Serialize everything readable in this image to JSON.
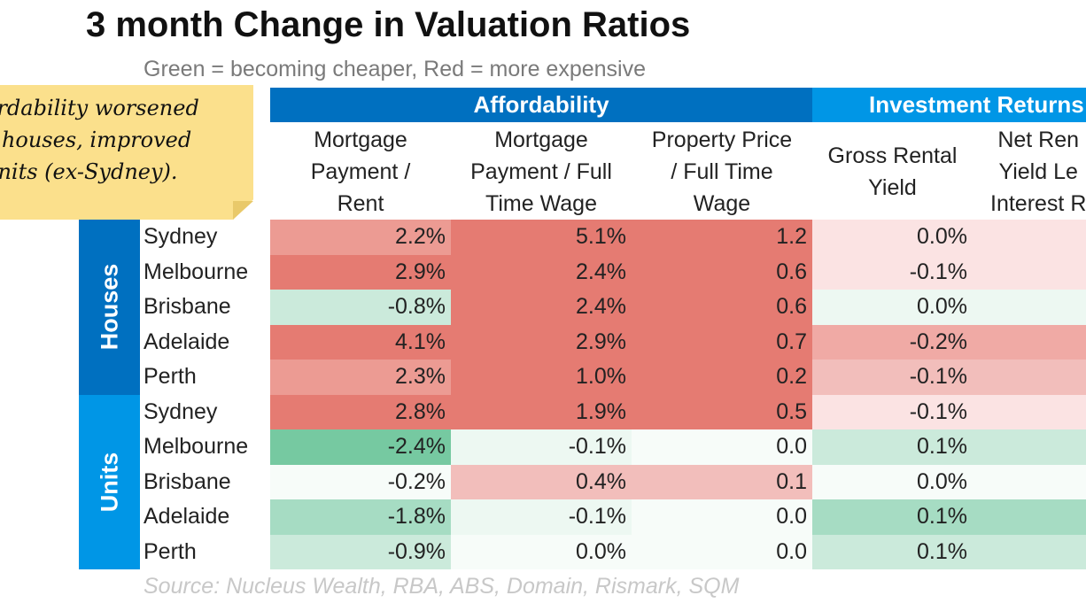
{
  "title": "3 month Change in Valuation Ratios",
  "subtitle": "Green = becoming cheaper, Red = more expensive",
  "source": "Source: Nucleus Wealth, RBA, ABS, Domain, Rismark, SQM",
  "note": {
    "lines": [
      "ordability worsened",
      "s houses, improved",
      "units (ex-Sydney)."
    ]
  },
  "colors": {
    "group_affordability": "#0070c0",
    "group_investment": "#0096e6",
    "band_houses": "#0070c0",
    "band_units": "#0096e6",
    "red_base": "#e06a62",
    "green_base": "#57bf8d",
    "note_bg": "#fbe08c"
  },
  "chart_data": {
    "type": "table",
    "title": "3 month Change in Valuation Ratios",
    "subtitle": "Green = becoming cheaper, Red = more expensive",
    "groups": [
      {
        "label": "Affordability",
        "columns": [
          0,
          1,
          2
        ]
      },
      {
        "label": "Investment Returns",
        "columns": [
          3,
          4
        ]
      }
    ],
    "columns": [
      {
        "label": "Mortgage\nPayment /\nRent",
        "format": "pct"
      },
      {
        "label": "Mortgage\nPayment / Full\nTime Wage",
        "format": "pct"
      },
      {
        "label": "Property Price\n/ Full Time\nWage",
        "format": "num"
      },
      {
        "label": "Gross Rental\nYield",
        "format": "pct"
      },
      {
        "label": "Net Ren\nYield Le\nInterest R",
        "format": "pct"
      }
    ],
    "segments": [
      {
        "label": "Houses",
        "rows": [
          {
            "name": "Sydney",
            "display": [
              "2.2%",
              "5.1%",
              "1.2",
              "0.0%",
              ""
            ],
            "values": [
              2.2,
              5.1,
              1.2,
              0.0,
              null
            ]
          },
          {
            "name": "Melbourne",
            "display": [
              "2.9%",
              "2.4%",
              "0.6",
              "-0.1%",
              ""
            ],
            "values": [
              2.9,
              2.4,
              0.6,
              -0.1,
              null
            ]
          },
          {
            "name": "Brisbane",
            "display": [
              "-0.8%",
              "2.4%",
              "0.6",
              "0.0%",
              ""
            ],
            "values": [
              -0.8,
              2.4,
              0.6,
              0.0,
              null
            ]
          },
          {
            "name": "Adelaide",
            "display": [
              "4.1%",
              "2.9%",
              "0.7",
              "-0.2%",
              ""
            ],
            "values": [
              4.1,
              2.9,
              0.7,
              -0.2,
              null
            ]
          },
          {
            "name": "Perth",
            "display": [
              "2.3%",
              "1.0%",
              "0.2",
              "-0.1%",
              ""
            ],
            "values": [
              2.3,
              1.0,
              0.2,
              -0.1,
              null
            ]
          }
        ]
      },
      {
        "label": "Units",
        "rows": [
          {
            "name": "Sydney",
            "display": [
              "2.8%",
              "1.9%",
              "0.5",
              "-0.1%",
              ""
            ],
            "values": [
              2.8,
              1.9,
              0.5,
              -0.1,
              null
            ]
          },
          {
            "name": "Melbourne",
            "display": [
              "-2.4%",
              "-0.1%",
              "0.0",
              "0.1%",
              ""
            ],
            "values": [
              -2.4,
              -0.1,
              0.0,
              0.1,
              null
            ]
          },
          {
            "name": "Brisbane",
            "display": [
              "-0.2%",
              "0.4%",
              "0.1",
              "0.0%",
              ""
            ],
            "values": [
              -0.2,
              0.4,
              0.1,
              0.0,
              null
            ]
          },
          {
            "name": "Adelaide",
            "display": [
              "-1.8%",
              "-0.1%",
              "0.0",
              "0.1%",
              ""
            ],
            "values": [
              -1.8,
              -0.1,
              0.0,
              0.1,
              null
            ]
          },
          {
            "name": "Perth",
            "display": [
              "-0.9%",
              "0.0%",
              "0.0",
              "0.1%",
              ""
            ],
            "values": [
              -0.9,
              0.0,
              0.0,
              0.1,
              null
            ]
          }
        ]
      }
    ],
    "cell_tint": [
      [
        "r-med",
        "r-high",
        "r-high",
        "r-vlight",
        "r-vlight"
      ],
      [
        "r-high",
        "r-high",
        "r-high",
        "r-vlight",
        "r-vlight"
      ],
      [
        "g-light",
        "r-high",
        "r-high",
        "g-vlight",
        "g-vlight"
      ],
      [
        "r-high",
        "r-high",
        "r-high",
        "r-light",
        "r-light"
      ],
      [
        "r-med",
        "r-high",
        "r-high",
        "r-lightmed",
        "r-lightmed"
      ],
      [
        "r-high",
        "r-high",
        "r-high",
        "r-vlight",
        "r-vlight"
      ],
      [
        "g-high",
        "g-vlight",
        "g-vvlight",
        "g-light",
        "g-light"
      ],
      [
        "g-vvlight",
        "r-lightmed",
        "r-lightmed",
        "g-vvlight",
        "g-vvlight"
      ],
      [
        "g-med",
        "g-vlight",
        "g-vvlight",
        "g-med",
        "g-med"
      ],
      [
        "g-light",
        "g-vvlight",
        "g-vvlight",
        "g-light",
        "g-light"
      ]
    ]
  }
}
